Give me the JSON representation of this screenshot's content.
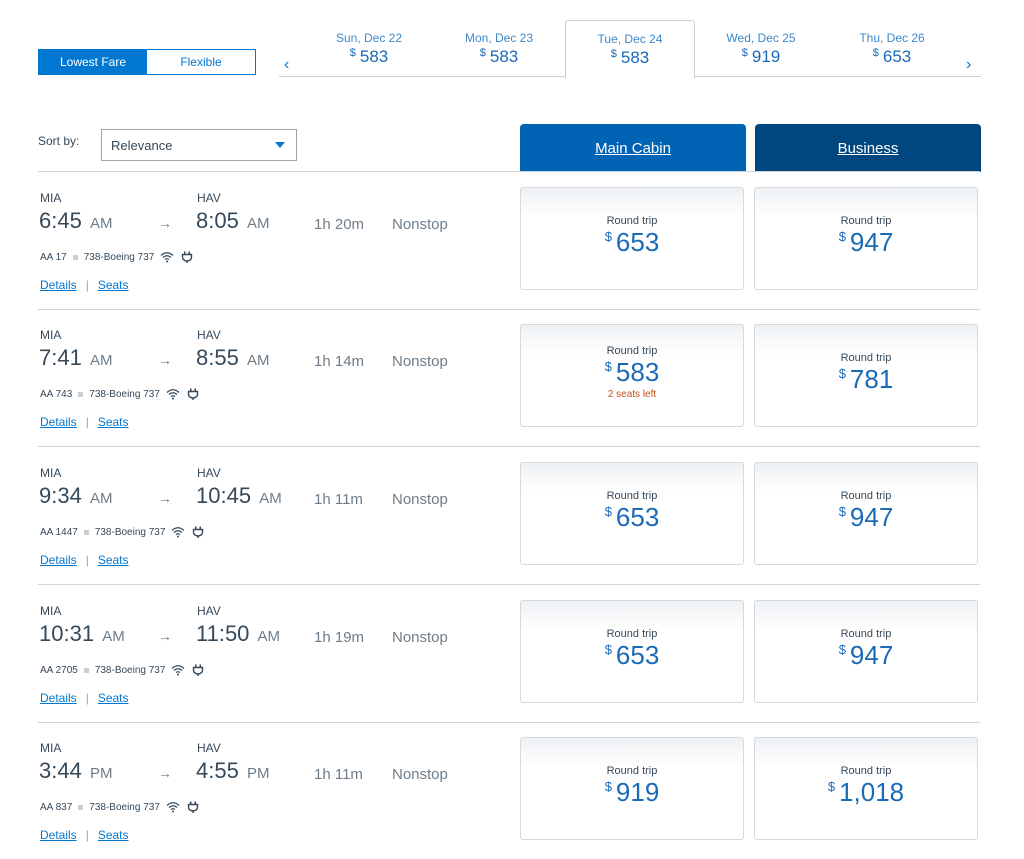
{
  "fare_toggle": {
    "lowest": "Lowest Fare",
    "flexible": "Flexible",
    "selected": "Lowest Fare"
  },
  "dates": [
    {
      "label": "Sun, Dec 22",
      "currency": "$",
      "price": "583"
    },
    {
      "label": "Mon, Dec 23",
      "currency": "$",
      "price": "583"
    },
    {
      "label": "Tue, Dec 24",
      "currency": "$",
      "price": "583",
      "selected": true
    },
    {
      "label": "Wed, Dec 25",
      "currency": "$",
      "price": "919"
    },
    {
      "label": "Thu, Dec 26",
      "currency": "$",
      "price": "653"
    }
  ],
  "nav": {
    "prev": "‹",
    "next": "›"
  },
  "sort": {
    "label": "Sort by:",
    "value": "Relevance"
  },
  "cabins": {
    "main": "Main Cabin",
    "business": "Business"
  },
  "links": {
    "details": "Details",
    "separator": "|",
    "seats": "Seats"
  },
  "flights": [
    {
      "from": "MIA",
      "to": "HAV",
      "dep_time": "6:45",
      "dep_ampm": "AM",
      "arr_time": "8:05",
      "arr_ampm": "AM",
      "duration": "1h 20m",
      "stops": "Nonstop",
      "flight_no": "AA 17",
      "aircraft": "738-Boeing 737",
      "main": {
        "label": "Round trip",
        "currency": "$",
        "price": "653"
      },
      "business": {
        "label": "Round trip",
        "currency": "$",
        "price": "947"
      }
    },
    {
      "from": "MIA",
      "to": "HAV",
      "dep_time": "7:41",
      "dep_ampm": "AM",
      "arr_time": "8:55",
      "arr_ampm": "AM",
      "duration": "1h 14m",
      "stops": "Nonstop",
      "flight_no": "AA 743",
      "aircraft": "738-Boeing 737",
      "main": {
        "label": "Round trip",
        "currency": "$",
        "price": "583",
        "seats_left": "2 seats left"
      },
      "business": {
        "label": "Round trip",
        "currency": "$",
        "price": "781"
      }
    },
    {
      "from": "MIA",
      "to": "HAV",
      "dep_time": "9:34",
      "dep_ampm": "AM",
      "arr_time": "10:45",
      "arr_ampm": "AM",
      "duration": "1h 11m",
      "stops": "Nonstop",
      "flight_no": "AA 1447",
      "aircraft": "738-Boeing 737",
      "main": {
        "label": "Round trip",
        "currency": "$",
        "price": "653"
      },
      "business": {
        "label": "Round trip",
        "currency": "$",
        "price": "947"
      }
    },
    {
      "from": "MIA",
      "to": "HAV",
      "dep_time": "10:31",
      "dep_ampm": "AM",
      "arr_time": "11:50",
      "arr_ampm": "AM",
      "duration": "1h 19m",
      "stops": "Nonstop",
      "flight_no": "AA 2705",
      "aircraft": "738-Boeing 737",
      "main": {
        "label": "Round trip",
        "currency": "$",
        "price": "653"
      },
      "business": {
        "label": "Round trip",
        "currency": "$",
        "price": "947"
      }
    },
    {
      "from": "MIA",
      "to": "HAV",
      "dep_time": "3:44",
      "dep_ampm": "PM",
      "arr_time": "4:55",
      "arr_ampm": "PM",
      "duration": "1h 11m",
      "stops": "Nonstop",
      "flight_no": "AA 837",
      "aircraft": "738-Boeing 737",
      "main": {
        "label": "Round trip",
        "currency": "$",
        "price": "919"
      },
      "business": {
        "label": "Round trip",
        "currency": "$",
        "price": "1,018"
      }
    }
  ],
  "icons": {
    "wifi": "wifi-icon",
    "power": "power-outlet-icon"
  },
  "colors": {
    "primary": "#0078d2",
    "main_cabin": "#0063b4",
    "business": "#00467f",
    "price": "#1b6ab8",
    "warning": "#c44d1a"
  }
}
